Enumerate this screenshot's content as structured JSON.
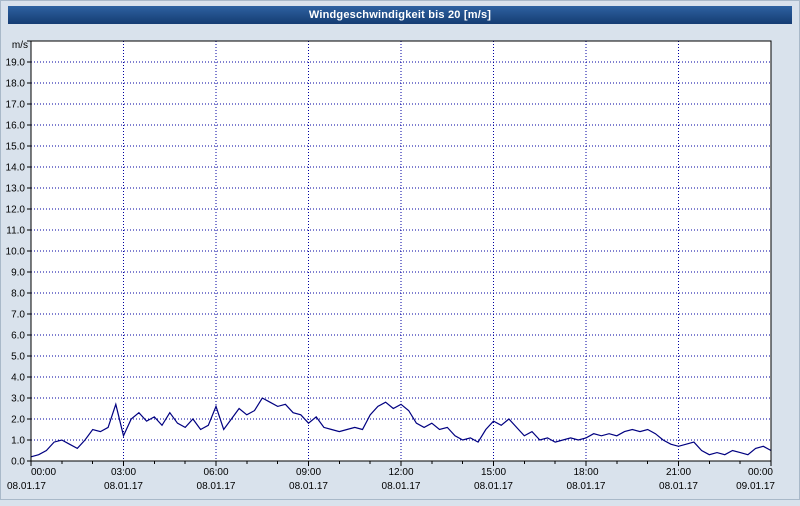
{
  "window": {
    "title": "Windgeschwindigkeit bis 20 [m/s]"
  },
  "colors": {
    "page_background": "#d9e2ec",
    "title_bar_top": "#2e62a1",
    "title_bar_bottom": "#153c72",
    "title_text": "#ffffff",
    "plot_background": "#ffffff",
    "grid": "#0000a0",
    "axis": "#000000",
    "series": "#000080"
  },
  "chart_data": {
    "type": "line",
    "title": "Windgeschwindigkeit bis 20 [m/s]",
    "xlabel": "",
    "ylabel": "m/s",
    "ylim": [
      0,
      20
    ],
    "ytick_step": 1,
    "ytick_labels": [
      "0.0",
      "1.0",
      "2.0",
      "3.0",
      "4.0",
      "5.0",
      "6.0",
      "7.0",
      "8.0",
      "9.0",
      "10.0",
      "11.0",
      "12.0",
      "13.0",
      "14.0",
      "15.0",
      "16.0",
      "17.0",
      "18.0",
      "19.0"
    ],
    "grid": true,
    "legend_position": "none",
    "x_range_minutes": [
      0,
      1440
    ],
    "xticks": [
      {
        "time": "00:00",
        "date": "08.01.17"
      },
      {
        "time": "03:00",
        "date": "08.01.17"
      },
      {
        "time": "06:00",
        "date": "08.01.17"
      },
      {
        "time": "09:00",
        "date": "08.01.17"
      },
      {
        "time": "12:00",
        "date": "08.01.17"
      },
      {
        "time": "15:00",
        "date": "08.01.17"
      },
      {
        "time": "18:00",
        "date": "08.01.17"
      },
      {
        "time": "21:00",
        "date": "08.01.17"
      },
      {
        "time": "00:00",
        "date": "09.01.17"
      }
    ],
    "series": [
      {
        "name": "Windgeschwindigkeit",
        "color": "#000080",
        "x_start_minutes": 0,
        "x_step_minutes": 15,
        "values": [
          0.2,
          0.3,
          0.5,
          0.9,
          1.0,
          0.8,
          0.6,
          1.0,
          1.5,
          1.4,
          1.6,
          2.7,
          1.2,
          2.0,
          2.3,
          1.9,
          2.1,
          1.7,
          2.3,
          1.8,
          1.6,
          2.0,
          1.5,
          1.7,
          2.6,
          1.5,
          2.0,
          2.5,
          2.2,
          2.4,
          3.0,
          2.8,
          2.6,
          2.7,
          2.3,
          2.2,
          1.8,
          2.1,
          1.6,
          1.5,
          1.4,
          1.5,
          1.6,
          1.5,
          2.2,
          2.6,
          2.8,
          2.5,
          2.7,
          2.4,
          1.8,
          1.6,
          1.8,
          1.5,
          1.6,
          1.2,
          1.0,
          1.1,
          0.9,
          1.5,
          1.9,
          1.7,
          2.0,
          1.6,
          1.2,
          1.4,
          1.0,
          1.1,
          0.9,
          1.0,
          1.1,
          1.0,
          1.1,
          1.3,
          1.2,
          1.3,
          1.2,
          1.4,
          1.5,
          1.4,
          1.5,
          1.3,
          1.0,
          0.8,
          0.7,
          0.8,
          0.9,
          0.5,
          0.3,
          0.4,
          0.3,
          0.5,
          0.4,
          0.3,
          0.6,
          0.7,
          0.5
        ]
      }
    ]
  }
}
